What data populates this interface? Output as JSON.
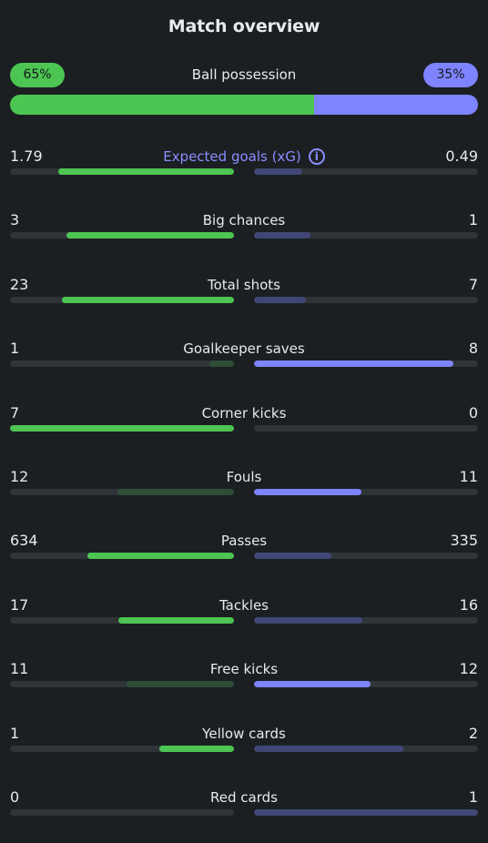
{
  "title": "Match overview",
  "colors": {
    "home": "#4dc552",
    "away": "#7e84ff",
    "background": "#1b1f22"
  },
  "possession": {
    "label": "Ball possession",
    "home_label": "65%",
    "away_label": "35%",
    "home": 65,
    "away": 35
  },
  "stats": [
    {
      "label": "Expected goals (xG)",
      "home": "1.79",
      "away": "0.49",
      "home_val": 1.79,
      "away_val": 0.49,
      "highlight": "home",
      "info_icon": "info-icon"
    },
    {
      "label": "Big chances",
      "home": "3",
      "away": "1",
      "home_val": 3,
      "away_val": 1,
      "highlight": "home"
    },
    {
      "label": "Total shots",
      "home": "23",
      "away": "7",
      "home_val": 23,
      "away_val": 7,
      "highlight": "home"
    },
    {
      "label": "Goalkeeper saves",
      "home": "1",
      "away": "8",
      "home_val": 1,
      "away_val": 8,
      "highlight": "away"
    },
    {
      "label": "Corner kicks",
      "home": "7",
      "away": "0",
      "home_val": 7,
      "away_val": 0,
      "highlight": "home"
    },
    {
      "label": "Fouls",
      "home": "12",
      "away": "11",
      "home_val": 12,
      "away_val": 11,
      "highlight": "away"
    },
    {
      "label": "Passes",
      "home": "634",
      "away": "335",
      "home_val": 634,
      "away_val": 335,
      "highlight": "home"
    },
    {
      "label": "Tackles",
      "home": "17",
      "away": "16",
      "home_val": 17,
      "away_val": 16,
      "highlight": "home"
    },
    {
      "label": "Free kicks",
      "home": "11",
      "away": "12",
      "home_val": 11,
      "away_val": 12,
      "highlight": "away"
    },
    {
      "label": "Yellow cards",
      "home": "1",
      "away": "2",
      "home_val": 1,
      "away_val": 2,
      "highlight": "home"
    },
    {
      "label": "Red cards",
      "home": "0",
      "away": "1",
      "home_val": 0,
      "away_val": 1,
      "highlight": "home"
    }
  ]
}
